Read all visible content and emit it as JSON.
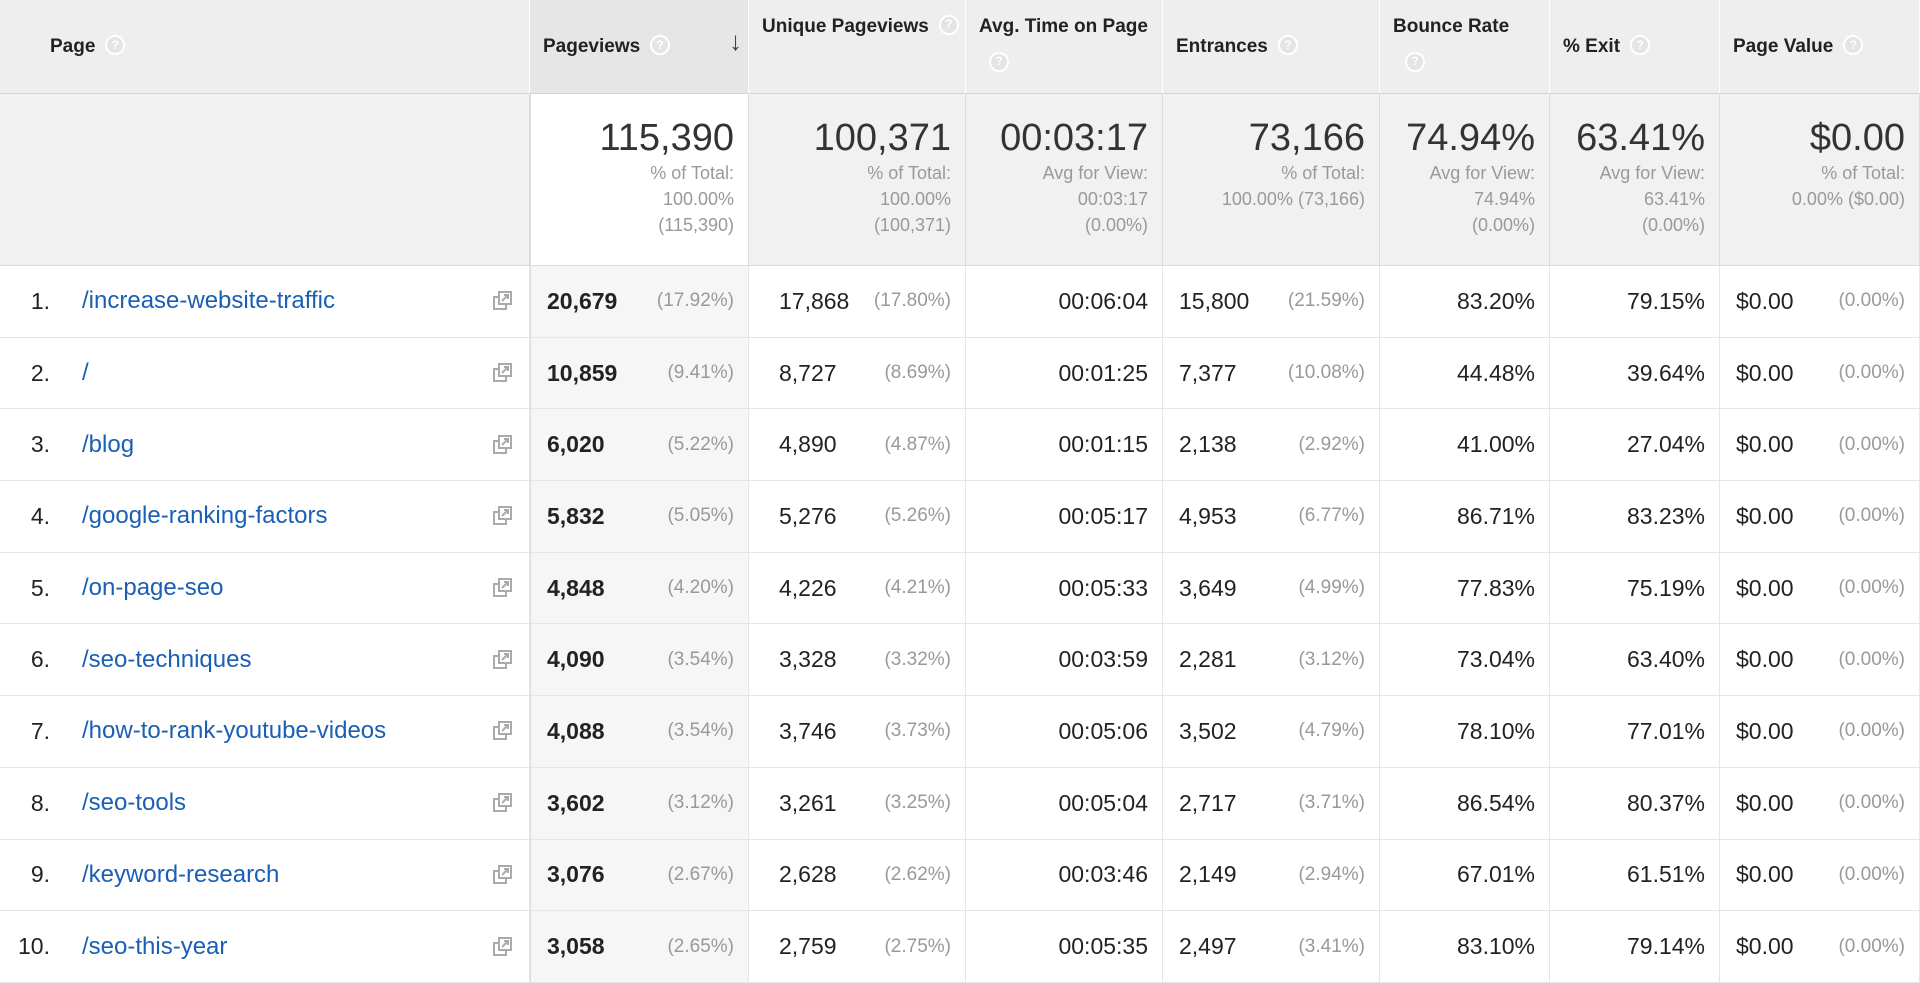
{
  "columns": {
    "page": "Page",
    "pageviews": "Pageviews",
    "unique_pageviews": "Unique Pageviews",
    "avg_time": "Avg. Time on Page",
    "entrances": "Entrances",
    "bounce_rate": "Bounce Rate",
    "exit": "% Exit",
    "page_value": "Page Value"
  },
  "icons": {
    "help": "?",
    "sort": "↓"
  },
  "totals": {
    "pageviews": {
      "value": "115,390",
      "line1": "% of Total:",
      "line2": "100.00%",
      "line3": "(115,390)"
    },
    "unique_pageviews": {
      "value": "100,371",
      "line1": "% of Total:",
      "line2": "100.00%",
      "line3": "(100,371)"
    },
    "avg_time": {
      "value": "00:03:17",
      "line1": "Avg for View:",
      "line2": "00:03:17",
      "line3": "(0.00%)"
    },
    "entrances": {
      "value": "73,166",
      "line1": "% of Total:",
      "line2": "100.00% (73,166)",
      "line3": ""
    },
    "bounce_rate": {
      "value": "74.94%",
      "line1": "Avg for View:",
      "line2": "74.94%",
      "line3": "(0.00%)"
    },
    "exit": {
      "value": "63.41%",
      "line1": "Avg for View:",
      "line2": "63.41%",
      "line3": "(0.00%)"
    },
    "page_value": {
      "value": "$0.00",
      "line1": "% of Total:",
      "line2": "0.00% ($0.00)",
      "line3": ""
    }
  },
  "rows": [
    {
      "num": "1.",
      "page": "/increase-website-traffic",
      "pv": "20,679",
      "pv_pct": "(17.92%)",
      "upv": "17,868",
      "upv_pct": "(17.80%)",
      "time": "00:06:04",
      "ent": "15,800",
      "ent_pct": "(21.59%)",
      "bounce": "83.20%",
      "exit": "79.15%",
      "value": "$0.00",
      "value_pct": "(0.00%)"
    },
    {
      "num": "2.",
      "page": "/",
      "pv": "10,859",
      "pv_pct": "(9.41%)",
      "upv": "8,727",
      "upv_pct": "(8.69%)",
      "time": "00:01:25",
      "ent": "7,377",
      "ent_pct": "(10.08%)",
      "bounce": "44.48%",
      "exit": "39.64%",
      "value": "$0.00",
      "value_pct": "(0.00%)"
    },
    {
      "num": "3.",
      "page": "/blog",
      "pv": "6,020",
      "pv_pct": "(5.22%)",
      "upv": "4,890",
      "upv_pct": "(4.87%)",
      "time": "00:01:15",
      "ent": "2,138",
      "ent_pct": "(2.92%)",
      "bounce": "41.00%",
      "exit": "27.04%",
      "value": "$0.00",
      "value_pct": "(0.00%)"
    },
    {
      "num": "4.",
      "page": "/google-ranking-factors",
      "pv": "5,832",
      "pv_pct": "(5.05%)",
      "upv": "5,276",
      "upv_pct": "(5.26%)",
      "time": "00:05:17",
      "ent": "4,953",
      "ent_pct": "(6.77%)",
      "bounce": "86.71%",
      "exit": "83.23%",
      "value": "$0.00",
      "value_pct": "(0.00%)"
    },
    {
      "num": "5.",
      "page": "/on-page-seo",
      "pv": "4,848",
      "pv_pct": "(4.20%)",
      "upv": "4,226",
      "upv_pct": "(4.21%)",
      "time": "00:05:33",
      "ent": "3,649",
      "ent_pct": "(4.99%)",
      "bounce": "77.83%",
      "exit": "75.19%",
      "value": "$0.00",
      "value_pct": "(0.00%)"
    },
    {
      "num": "6.",
      "page": "/seo-techniques",
      "pv": "4,090",
      "pv_pct": "(3.54%)",
      "upv": "3,328",
      "upv_pct": "(3.32%)",
      "time": "00:03:59",
      "ent": "2,281",
      "ent_pct": "(3.12%)",
      "bounce": "73.04%",
      "exit": "63.40%",
      "value": "$0.00",
      "value_pct": "(0.00%)"
    },
    {
      "num": "7.",
      "page": "/how-to-rank-youtube-videos",
      "pv": "4,088",
      "pv_pct": "(3.54%)",
      "upv": "3,746",
      "upv_pct": "(3.73%)",
      "time": "00:05:06",
      "ent": "3,502",
      "ent_pct": "(4.79%)",
      "bounce": "78.10%",
      "exit": "77.01%",
      "value": "$0.00",
      "value_pct": "(0.00%)"
    },
    {
      "num": "8.",
      "page": "/seo-tools",
      "pv": "3,602",
      "pv_pct": "(3.12%)",
      "upv": "3,261",
      "upv_pct": "(3.25%)",
      "time": "00:05:04",
      "ent": "2,717",
      "ent_pct": "(3.71%)",
      "bounce": "86.54%",
      "exit": "80.37%",
      "value": "$0.00",
      "value_pct": "(0.00%)"
    },
    {
      "num": "9.",
      "page": "/keyword-research",
      "pv": "3,076",
      "pv_pct": "(2.67%)",
      "upv": "2,628",
      "upv_pct": "(2.62%)",
      "time": "00:03:46",
      "ent": "2,149",
      "ent_pct": "(2.94%)",
      "bounce": "67.01%",
      "exit": "61.51%",
      "value": "$0.00",
      "value_pct": "(0.00%)"
    },
    {
      "num": "10.",
      "page": "/seo-this-year",
      "pv": "3,058",
      "pv_pct": "(2.65%)",
      "upv": "2,759",
      "upv_pct": "(2.75%)",
      "time": "00:05:35",
      "ent": "2,497",
      "ent_pct": "(3.41%)",
      "bounce": "83.10%",
      "exit": "79.14%",
      "value": "$0.00",
      "value_pct": "(0.00%)"
    }
  ]
}
